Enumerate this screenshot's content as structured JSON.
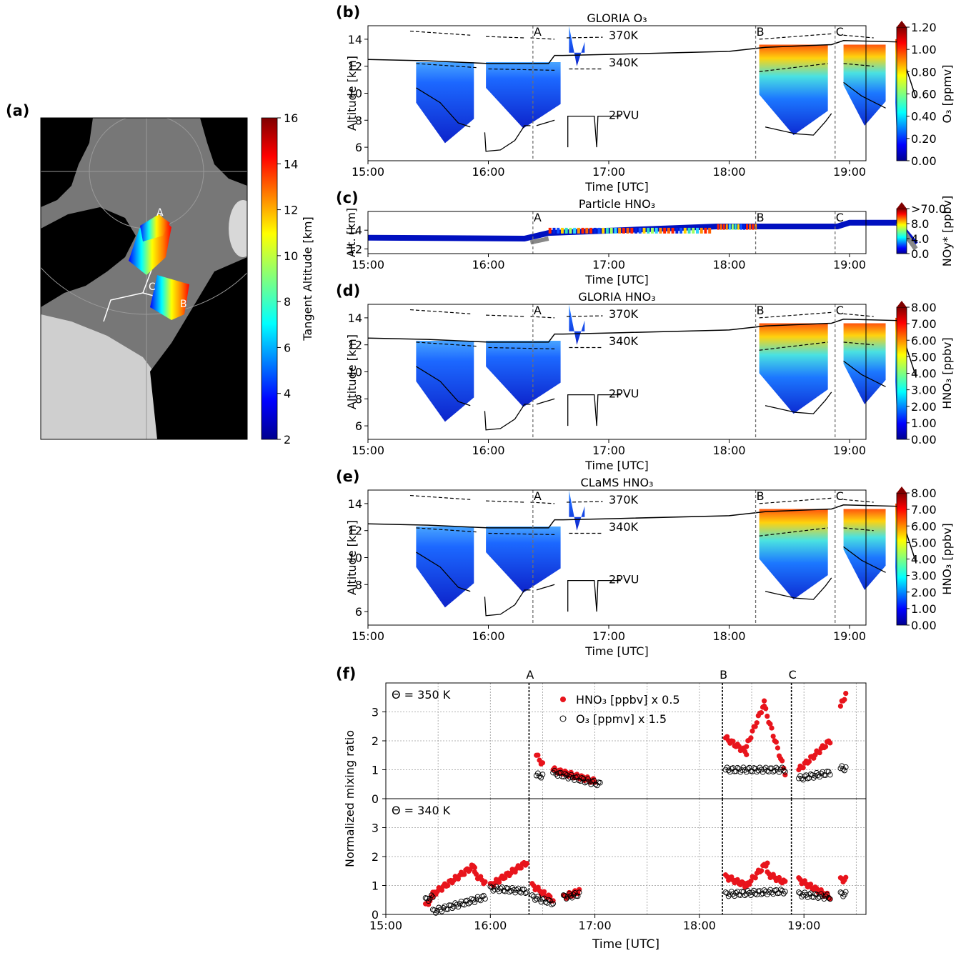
{
  "figure": {
    "panel_labels": {
      "a": "(a)",
      "b": "(b)",
      "c": "(c)",
      "d": "(d)",
      "e": "(e)",
      "f": "(f)"
    }
  },
  "map": {
    "colorbar_label": "Tangent Altitude [km]",
    "colorbar_ticks": [
      "2",
      "4",
      "6",
      "8",
      "10",
      "12",
      "14",
      "16"
    ],
    "points": {
      "A": "A",
      "B": "B",
      "C": "C"
    }
  },
  "time_axis": {
    "label": "Time [UTC]",
    "ticks": [
      "15:00",
      "16:00",
      "17:00",
      "18:00",
      "19:00"
    ]
  },
  "panels": {
    "b": {
      "title": "GLORIA O3",
      "ylabel": "Altitude [km]",
      "yticks": [
        "6",
        "8",
        "10",
        "12",
        "14"
      ],
      "cbar_label": "O3 [ppmv]",
      "cbar_ticks": [
        "0.00",
        "0.20",
        "0.40",
        "0.60",
        "0.80",
        "1.00",
        "1.20"
      ]
    },
    "c": {
      "title": "Particle HNO3",
      "ylabel": "Alt. [km]",
      "yticks": [
        "12",
        "14"
      ],
      "cbar_label": "NOy* [ppbv]",
      "cbar_ticks": [
        "0.0",
        "4.0",
        "8.0",
        ">70.0"
      ]
    },
    "d": {
      "title": "GLORIA HNO3",
      "ylabel": "Altitude [km]",
      "yticks": [
        "6",
        "8",
        "10",
        "12",
        "14"
      ],
      "cbar_label": "HNO3 [ppbv]",
      "cbar_ticks": [
        "0.00",
        "1.00",
        "2.00",
        "3.00",
        "4.00",
        "5.00",
        "6.00",
        "7.00",
        "8.00"
      ]
    },
    "e": {
      "title": "CLaMS HNO3",
      "ylabel": "Altitude [km]",
      "yticks": [
        "6",
        "8",
        "10",
        "12",
        "14"
      ],
      "cbar_label": "HNO3 [ppbv]",
      "cbar_ticks": [
        "0.00",
        "1.00",
        "2.00",
        "3.00",
        "4.00",
        "5.00",
        "6.00",
        "7.00",
        "8.00"
      ]
    },
    "contour_labels": {
      "k370": "370K",
      "k340": "340K",
      "pvu": "2PVU"
    },
    "event_labels": {
      "A": "A",
      "B": "B",
      "C": "C"
    }
  },
  "panel_f": {
    "ylabel": "Normalized mixing ratio",
    "upper_label": "Θ = 350 K",
    "lower_label": "Θ = 340 K",
    "yticks": [
      "0",
      "1",
      "2",
      "3"
    ],
    "legend": {
      "hno3": "HNO3 [ppbv] x 0.5",
      "o3": "O3 [ppmv] x 1.5"
    }
  },
  "colors": {
    "hno3_points": "#e8141c",
    "flight_altitude": "#000000",
    "event_lines": "#707070",
    "map_land": "#000000",
    "map_sea": "#777777"
  },
  "chart_data": [
    {
      "panel": "b",
      "type": "heatmap",
      "title": "GLORIA O3",
      "x_range": [
        "15:00",
        "19:35"
      ],
      "ylim": [
        5,
        15
      ],
      "clim": [
        0,
        1.2
      ],
      "events": [
        {
          "label": "A",
          "time": 16.37
        },
        {
          "label": "B",
          "time": 18.22
        },
        {
          "label": "C",
          "time": 18.88
        }
      ],
      "flight_altitude": {
        "x": [
          15.0,
          15.5,
          16.0,
          16.5,
          16.55,
          16.62,
          17.1,
          18.0,
          18.3,
          18.85,
          18.95,
          19.4,
          19.55
        ],
        "y": [
          12.5,
          12.4,
          12.2,
          12.2,
          12.8,
          12.8,
          12.9,
          13.1,
          13.4,
          13.6,
          13.9,
          13.8,
          9.7
        ]
      }
    },
    {
      "panel": "c",
      "type": "heatmap",
      "title": "Particle HNO3",
      "ylim": [
        11.5,
        16
      ],
      "clim": [
        0,
        70
      ]
    },
    {
      "panel": "d",
      "type": "heatmap",
      "title": "GLORIA HNO3",
      "ylim": [
        5,
        15
      ],
      "clim": [
        0,
        8
      ]
    },
    {
      "panel": "e",
      "type": "heatmap",
      "title": "CLaMS HNO3",
      "ylim": [
        5,
        15
      ],
      "clim": [
        0,
        8
      ]
    },
    {
      "panel": "f",
      "type": "scatter",
      "ylabel": "Normalized mixing ratio",
      "ylim": [
        0,
        4
      ],
      "subplots": [
        {
          "label": "Θ = 350 K",
          "series": [
            {
              "name": "HNO3 [ppbv] x 0.5",
              "segments": [
                {
                  "t0": 16.44,
                  "t1": 16.5,
                  "v0": 1.5,
                  "v1": 1.2
                },
                {
                  "t0": 16.6,
                  "t1": 17.0,
                  "v0": 1.0,
                  "v1": 0.6
                },
                {
                  "t0": 18.25,
                  "t1": 18.45,
                  "v0": 2.1,
                  "v1": 1.6
                },
                {
                  "t0": 18.45,
                  "t1": 18.62,
                  "v0": 1.8,
                  "v1": 3.3
                },
                {
                  "t0": 18.62,
                  "t1": 18.82,
                  "v0": 3.2,
                  "v1": 0.9
                },
                {
                  "t0": 18.95,
                  "t1": 19.25,
                  "v0": 1.0,
                  "v1": 2.0
                },
                {
                  "t0": 19.35,
                  "t1": 19.4,
                  "v0": 3.2,
                  "v1": 3.6
                }
              ]
            },
            {
              "name": "O3 [ppmv] x 1.5",
              "segments": [
                {
                  "t0": 16.44,
                  "t1": 16.5,
                  "v0": 0.8,
                  "v1": 0.8
                },
                {
                  "t0": 16.6,
                  "t1": 17.05,
                  "v0": 0.9,
                  "v1": 0.5
                },
                {
                  "t0": 18.25,
                  "t1": 18.82,
                  "v0": 1.0,
                  "v1": 1.0
                },
                {
                  "t0": 18.95,
                  "t1": 19.25,
                  "v0": 0.7,
                  "v1": 0.9
                },
                {
                  "t0": 19.35,
                  "t1": 19.4,
                  "v0": 1.05,
                  "v1": 1.05
                }
              ]
            }
          ]
        },
        {
          "label": "Θ = 340 K",
          "series": [
            {
              "name": "HNO3 [ppbv] x 0.5",
              "segments": [
                {
                  "t0": 15.38,
                  "t1": 15.45,
                  "v0": 0.3,
                  "v1": 0.6
                },
                {
                  "t0": 15.45,
                  "t1": 15.85,
                  "v0": 0.7,
                  "v1": 1.7
                },
                {
                  "t0": 15.85,
                  "t1": 15.95,
                  "v0": 1.4,
                  "v1": 1.1
                },
                {
                  "t0": 16.0,
                  "t1": 16.35,
                  "v0": 1.0,
                  "v1": 1.8
                },
                {
                  "t0": 16.4,
                  "t1": 16.6,
                  "v0": 1.0,
                  "v1": 0.5
                },
                {
                  "t0": 16.7,
                  "t1": 16.85,
                  "v0": 0.6,
                  "v1": 0.8
                },
                {
                  "t0": 18.25,
                  "t1": 18.45,
                  "v0": 1.3,
                  "v1": 1.0
                },
                {
                  "t0": 18.45,
                  "t1": 18.65,
                  "v0": 1.0,
                  "v1": 1.8
                },
                {
                  "t0": 18.65,
                  "t1": 18.82,
                  "v0": 1.4,
                  "v1": 1.1
                },
                {
                  "t0": 18.95,
                  "t1": 19.25,
                  "v0": 1.2,
                  "v1": 0.6
                },
                {
                  "t0": 19.35,
                  "t1": 19.4,
                  "v0": 1.2,
                  "v1": 1.2
                }
              ]
            },
            {
              "name": "O3 [ppmv] x 1.5",
              "segments": [
                {
                  "t0": 15.38,
                  "t1": 15.45,
                  "v0": 0.5,
                  "v1": 0.6
                },
                {
                  "t0": 15.45,
                  "t1": 15.95,
                  "v0": 0.1,
                  "v1": 0.6
                },
                {
                  "t0": 16.0,
                  "t1": 16.35,
                  "v0": 0.9,
                  "v1": 0.8
                },
                {
                  "t0": 16.4,
                  "t1": 16.6,
                  "v0": 0.6,
                  "v1": 0.4
                },
                {
                  "t0": 16.7,
                  "t1": 16.85,
                  "v0": 0.6,
                  "v1": 0.7
                },
                {
                  "t0": 18.25,
                  "t1": 18.82,
                  "v0": 0.7,
                  "v1": 0.8
                },
                {
                  "t0": 18.95,
                  "t1": 19.25,
                  "v0": 0.7,
                  "v1": 0.6
                },
                {
                  "t0": 19.35,
                  "t1": 19.4,
                  "v0": 0.7,
                  "v1": 0.7
                }
              ]
            }
          ]
        }
      ]
    }
  ]
}
